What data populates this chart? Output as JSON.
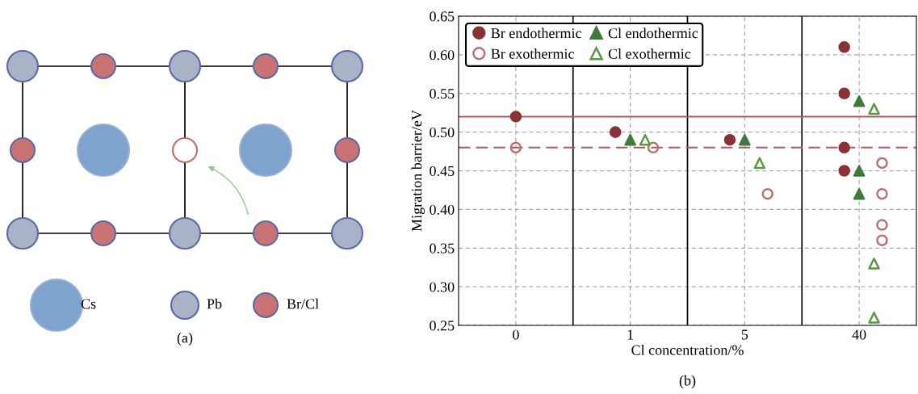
{
  "chart_data": [
    {
      "type": "other",
      "annotations": [
        "Cs",
        "Pb",
        "Br/Cl",
        "(a)"
      ]
    },
    {
      "type": "scatter",
      "xlabel": "Cl concentration/%",
      "ylabel": "Migration barrier/eV",
      "annotations": [
        "(b)"
      ],
      "categories": [
        "0",
        "1",
        "5",
        "40"
      ],
      "ylim": [
        0.25,
        0.65
      ],
      "yticks": [
        {
          "value": 0.25,
          "label": "0.25"
        },
        {
          "value": 0.3,
          "label": "0.30"
        },
        {
          "value": 0.35,
          "label": "0.35"
        },
        {
          "value": 0.4,
          "label": "0.40"
        },
        {
          "value": 0.45,
          "label": "0.45"
        },
        {
          "value": 0.5,
          "label": "0.50"
        },
        {
          "value": 0.55,
          "label": "0.55"
        },
        {
          "value": 0.6,
          "label": "0.60"
        },
        {
          "value": 0.65,
          "label": "0.65"
        }
      ],
      "grid": true,
      "legend": "top left",
      "ref_lines": [
        {
          "axis": "y",
          "value": 0.52,
          "color": "#a85a5e",
          "line_style": "solid"
        },
        {
          "axis": "y",
          "value": 0.48,
          "color": "#a85a5e",
          "line_style": "dashed"
        }
      ],
      "series": [
        {
          "name": "Br endothermic",
          "color": "#8b3236",
          "marker": "circle",
          "x": [
            "0",
            "1",
            "5",
            "40",
            "40",
            "40",
            "40"
          ],
          "values": [
            0.52,
            0.5,
            0.49,
            0.61,
            0.55,
            0.48,
            0.45
          ]
        },
        {
          "name": "Br exothermic",
          "color": "#b87276",
          "marker": "circle",
          "x": [
            "0",
            "1",
            "5",
            "40",
            "40",
            "40",
            "40"
          ],
          "values": [
            0.48,
            0.48,
            0.42,
            0.46,
            0.42,
            0.38,
            0.36
          ]
        },
        {
          "name": "Cl endothermic",
          "color": "#3f7a3a",
          "marker": "triangle",
          "x": [
            "1",
            "5",
            "40",
            "40",
            "40"
          ],
          "values": [
            0.49,
            0.49,
            0.54,
            0.45,
            0.42
          ]
        },
        {
          "name": "Cl exothermic",
          "color": "#5a9a44",
          "marker": "triangle",
          "x": [
            "1",
            "5",
            "40",
            "40",
            "40"
          ],
          "values": [
            0.49,
            0.46,
            0.53,
            0.33,
            0.26
          ]
        }
      ]
    }
  ]
}
